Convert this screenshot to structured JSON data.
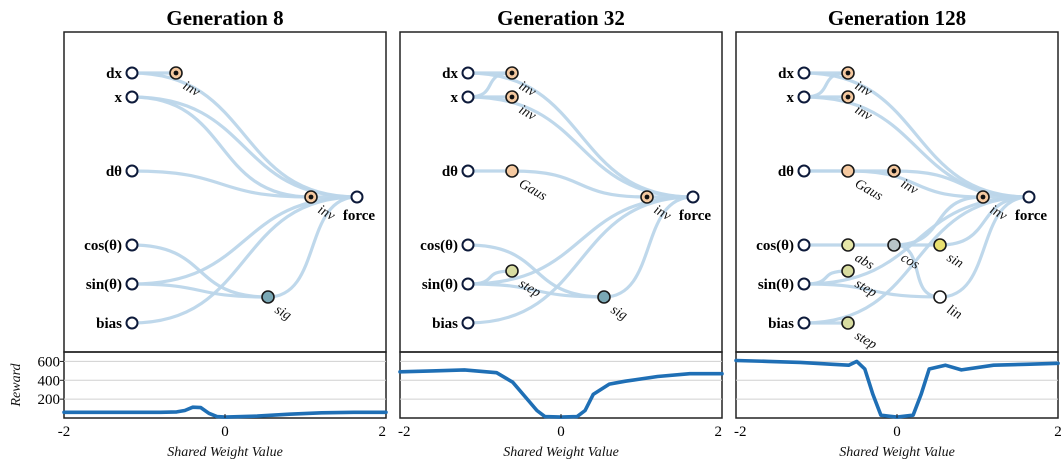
{
  "panels": [
    {
      "title": "Generation 8",
      "nodes": [
        {
          "id": "dx",
          "kind": "input",
          "label": "dx"
        },
        {
          "id": "x",
          "kind": "input",
          "label": "x"
        },
        {
          "id": "dth",
          "kind": "input",
          "label": "dθ"
        },
        {
          "id": "cos",
          "kind": "input",
          "label": "cos(θ)"
        },
        {
          "id": "sin",
          "kind": "input",
          "label": "sin(θ)"
        },
        {
          "id": "bias",
          "kind": "input",
          "label": "bias"
        },
        {
          "id": "h1",
          "kind": "hidden",
          "act": "inv",
          "color": "#f5c9a0"
        },
        {
          "id": "h2",
          "kind": "hidden",
          "act": "inv",
          "color": "#f5c9a0"
        },
        {
          "id": "h3",
          "kind": "hidden",
          "act": "sig",
          "color": "#7aa8b5"
        },
        {
          "id": "out",
          "kind": "output",
          "label": "force"
        }
      ],
      "edges": [
        [
          "dx",
          "h1"
        ],
        [
          "dx",
          "out"
        ],
        [
          "x",
          "out"
        ],
        [
          "x",
          "h2"
        ],
        [
          "dth",
          "h2"
        ],
        [
          "h2",
          "out"
        ],
        [
          "cos",
          "h3"
        ],
        [
          "sin",
          "h3"
        ],
        [
          "sin",
          "out"
        ],
        [
          "h3",
          "out"
        ],
        [
          "bias",
          "out"
        ]
      ],
      "reward_curve": {
        "x": [
          -2,
          -1.6,
          -1.2,
          -0.8,
          -0.6,
          -0.5,
          -0.4,
          -0.3,
          -0.2,
          -0.1,
          0,
          0.4,
          0.8,
          1.2,
          1.6,
          2
        ],
        "y": [
          60,
          60,
          60,
          60,
          65,
          80,
          115,
          110,
          50,
          15,
          10,
          20,
          40,
          55,
          60,
          60
        ]
      }
    },
    {
      "title": "Generation 32",
      "nodes": [
        {
          "id": "dx",
          "kind": "input",
          "label": "dx"
        },
        {
          "id": "x",
          "kind": "input",
          "label": "x"
        },
        {
          "id": "dth",
          "kind": "input",
          "label": "dθ"
        },
        {
          "id": "cos",
          "kind": "input",
          "label": "cos(θ)"
        },
        {
          "id": "sin",
          "kind": "input",
          "label": "sin(θ)"
        },
        {
          "id": "bias",
          "kind": "input",
          "label": "bias"
        },
        {
          "id": "h1",
          "kind": "hidden",
          "act": "inv",
          "color": "#f5c9a0"
        },
        {
          "id": "h2",
          "kind": "hidden",
          "act": "inv",
          "color": "#f5c9a0"
        },
        {
          "id": "h4",
          "kind": "hidden",
          "act": "Gaus",
          "color": "#f5c9a0"
        },
        {
          "id": "h5",
          "kind": "hidden",
          "act": "inv",
          "color": "#f5c9a0"
        },
        {
          "id": "h6",
          "kind": "hidden",
          "act": "step",
          "color": "#d8dca0"
        },
        {
          "id": "h3",
          "kind": "hidden",
          "act": "sig",
          "color": "#7aa8b5"
        },
        {
          "id": "out",
          "kind": "output",
          "label": "force"
        }
      ],
      "edges": [
        [
          "dx",
          "h1"
        ],
        [
          "dx",
          "out"
        ],
        [
          "x",
          "h1"
        ],
        [
          "x",
          "h2"
        ],
        [
          "x",
          "out"
        ],
        [
          "dth",
          "h4"
        ],
        [
          "h4",
          "h5"
        ],
        [
          "h5",
          "out"
        ],
        [
          "cos",
          "h3"
        ],
        [
          "sin",
          "h6"
        ],
        [
          "sin",
          "h3"
        ],
        [
          "sin",
          "out"
        ],
        [
          "h3",
          "out"
        ],
        [
          "bias",
          "out"
        ]
      ],
      "reward_curve": {
        "x": [
          -2,
          -1.6,
          -1.2,
          -0.8,
          -0.6,
          -0.4,
          -0.3,
          -0.2,
          0,
          0.2,
          0.3,
          0.4,
          0.6,
          0.8,
          1.2,
          1.6,
          2
        ],
        "y": [
          490,
          500,
          510,
          480,
          380,
          180,
          80,
          15,
          10,
          15,
          80,
          250,
          360,
          390,
          440,
          470,
          470
        ]
      }
    },
    {
      "title": "Generation 128",
      "nodes": [
        {
          "id": "dx",
          "kind": "input",
          "label": "dx"
        },
        {
          "id": "x",
          "kind": "input",
          "label": "x"
        },
        {
          "id": "dth",
          "kind": "input",
          "label": "dθ"
        },
        {
          "id": "cos",
          "kind": "input",
          "label": "cos(θ)"
        },
        {
          "id": "sin",
          "kind": "input",
          "label": "sin(θ)"
        },
        {
          "id": "bias",
          "kind": "input",
          "label": "bias"
        },
        {
          "id": "h1",
          "kind": "hidden",
          "act": "inv",
          "color": "#f5c9a0"
        },
        {
          "id": "h2",
          "kind": "hidden",
          "act": "inv",
          "color": "#f5c9a0"
        },
        {
          "id": "h4",
          "kind": "hidden",
          "act": "Gaus",
          "color": "#f5c9a0"
        },
        {
          "id": "h7",
          "kind": "hidden",
          "act": "inv",
          "color": "#f5c9a0"
        },
        {
          "id": "h5",
          "kind": "hidden",
          "act": "inv",
          "color": "#f5c9a0"
        },
        {
          "id": "h8",
          "kind": "hidden",
          "act": "abs",
          "color": "#e6e6a8"
        },
        {
          "id": "h9",
          "kind": "hidden",
          "act": "cos",
          "color": "#b8c4c8"
        },
        {
          "id": "h10",
          "kind": "hidden",
          "act": "sin",
          "color": "#e8e070"
        },
        {
          "id": "h6",
          "kind": "hidden",
          "act": "step",
          "color": "#d8dca0"
        },
        {
          "id": "h11",
          "kind": "hidden",
          "act": "lin",
          "color": "#ffffff"
        },
        {
          "id": "h12",
          "kind": "hidden",
          "act": "step",
          "color": "#d8dca0"
        },
        {
          "id": "out",
          "kind": "output",
          "label": "force"
        }
      ],
      "edges": [
        [
          "dx",
          "h1"
        ],
        [
          "dx",
          "out"
        ],
        [
          "x",
          "h1"
        ],
        [
          "x",
          "h2"
        ],
        [
          "x",
          "out"
        ],
        [
          "dth",
          "h4"
        ],
        [
          "dth",
          "h7"
        ],
        [
          "h4",
          "h5"
        ],
        [
          "h7",
          "out"
        ],
        [
          "h5",
          "out"
        ],
        [
          "cos",
          "h8"
        ],
        [
          "h8",
          "h9"
        ],
        [
          "h9",
          "h5"
        ],
        [
          "h9",
          "h10"
        ],
        [
          "h9",
          "h11"
        ],
        [
          "sin",
          "h6"
        ],
        [
          "sin",
          "h11"
        ],
        [
          "sin",
          "out"
        ],
        [
          "bias",
          "h12"
        ],
        [
          "bias",
          "out"
        ],
        [
          "h10",
          "out"
        ],
        [
          "h11",
          "out"
        ]
      ],
      "reward_curve": {
        "x": [
          -2,
          -1.6,
          -1.2,
          -0.8,
          -0.6,
          -0.5,
          -0.4,
          -0.3,
          -0.2,
          0,
          0.2,
          0.3,
          0.4,
          0.6,
          0.8,
          1.2,
          1.6,
          2
        ],
        "y": [
          610,
          600,
          590,
          570,
          560,
          600,
          520,
          250,
          30,
          10,
          30,
          250,
          520,
          560,
          510,
          560,
          570,
          580
        ]
      }
    }
  ],
  "reward_axis": {
    "label": "Reward",
    "ticks": [
      200,
      400,
      600
    ],
    "ylim": [
      0,
      700
    ]
  },
  "x_axis": {
    "label": "Shared Weight Value",
    "tick_labels": [
      "-2",
      "0",
      "2"
    ],
    "xlim": [
      -2,
      2
    ]
  },
  "edge_color": "#bcd6ea",
  "curve_color": "#1f6fb5"
}
